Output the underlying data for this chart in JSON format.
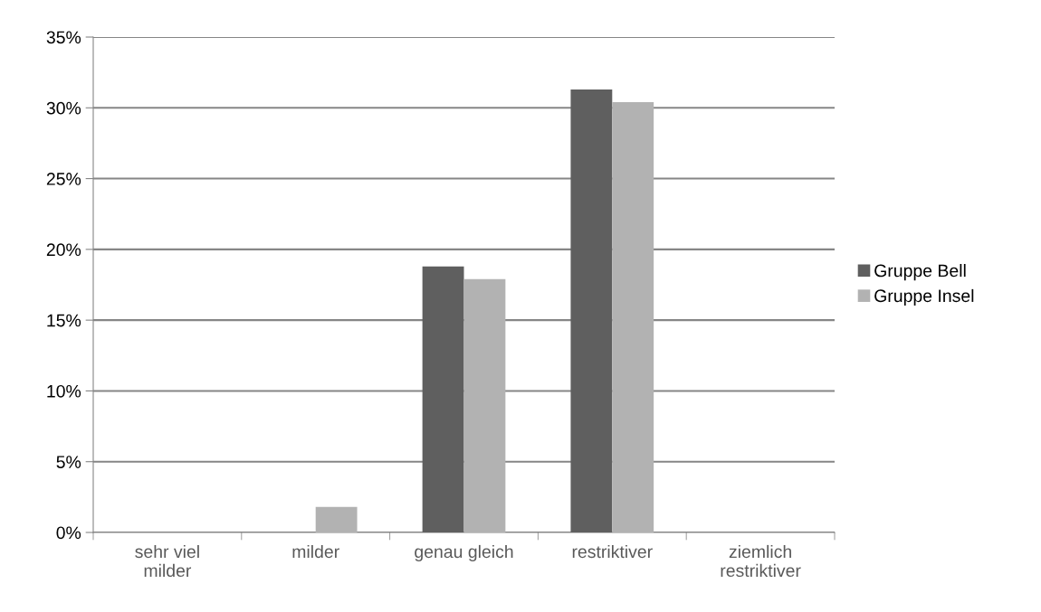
{
  "chart_data": {
    "type": "bar",
    "categories": [
      "sehr viel\nmilder",
      "milder",
      "genau gleich",
      "restriktiver",
      "ziemlich\nrestriktiver"
    ],
    "series": [
      {
        "name": "Gruppe Bell",
        "color": "#5f5f5f",
        "values": [
          0,
          0,
          18.8,
          31.3,
          0
        ]
      },
      {
        "name": "Gruppe Insel",
        "color": "#b2b2b2",
        "values": [
          0,
          1.8,
          17.9,
          30.4,
          0
        ]
      }
    ],
    "ylim": [
      0,
      35
    ],
    "yticks": [
      {
        "value": 0,
        "label": "0%"
      },
      {
        "value": 5,
        "label": "5%"
      },
      {
        "value": 10,
        "label": "10%"
      },
      {
        "value": 15,
        "label": "15%"
      },
      {
        "value": 20,
        "label": "20%"
      },
      {
        "value": 25,
        "label": "25%"
      },
      {
        "value": 30,
        "label": "30%"
      },
      {
        "value": 35,
        "label": "35%"
      }
    ],
    "grid": "y",
    "legend": "right"
  }
}
